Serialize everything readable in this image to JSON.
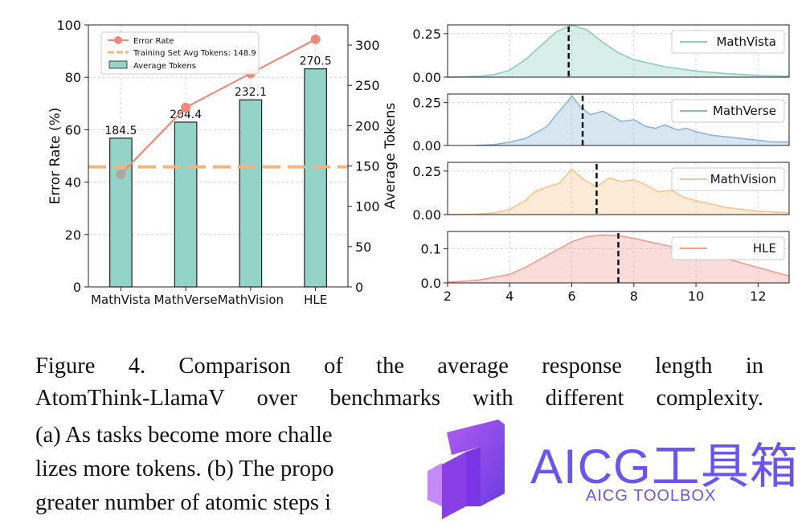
{
  "figure": {
    "caption_lines": [
      "Figure 4.   Comparison of the average response length in",
      "AtomThink-LlamaV over benchmarks with different complexity.",
      "(a) As tasks become more challe",
      "lizes more tokens. (b) The propo",
      "greater number of atomic steps i"
    ]
  },
  "watermark": {
    "main_text": "AICG工具箱",
    "sub_text": "AICG TOOLBOX",
    "color": "#6b55f2"
  },
  "chart_data": [
    {
      "type": "bar",
      "categories": [
        "MathVista",
        "MathVerse",
        "MathVision",
        "HLE"
      ],
      "ylabel": "Error Rate (%)",
      "ylim": [
        0,
        100
      ],
      "yticks": [
        0,
        20,
        40,
        60,
        80,
        100
      ],
      "y2label": "Average Tokens",
      "y2lim": [
        0,
        325
      ],
      "y2ticks": [
        0,
        50,
        100,
        150,
        200,
        250,
        300
      ],
      "grid": true,
      "legend_position": "top-left",
      "series": [
        {
          "name": "Error Rate",
          "kind": "line",
          "axis": "left",
          "values": [
            43,
            68.5,
            81.5,
            94.5
          ],
          "color": "#ef8a78"
        },
        {
          "name": "Training Set Avg Tokens: 148.9",
          "kind": "hline",
          "axis": "right",
          "value": 148.9,
          "color": "#f3b57c"
        },
        {
          "name": "Average Tokens",
          "kind": "bar",
          "axis": "right",
          "values": [
            184.5,
            204.4,
            232.1,
            270.5
          ],
          "labels": [
            "184.5",
            "204.4",
            "232.1",
            "270.5"
          ],
          "color": "#93d3c8"
        }
      ]
    },
    {
      "type": "area",
      "x_range": [
        2,
        13
      ],
      "xticks": [
        2,
        4,
        6,
        8,
        10,
        12
      ],
      "grid": true,
      "legend_position": "top-right",
      "panels": [
        {
          "name": "MathVista",
          "color": "#8fcdbf",
          "ylim": [
            0,
            0.3
          ],
          "yticks": [
            "0.00",
            "0.25"
          ],
          "mean": 5.9,
          "x": [
            2,
            2.5,
            3,
            3.5,
            4,
            4.5,
            5,
            5.5,
            6,
            6.5,
            7,
            7.5,
            8,
            9,
            10,
            11,
            12,
            13
          ],
          "y": [
            0,
            0.002,
            0.005,
            0.015,
            0.04,
            0.1,
            0.18,
            0.26,
            0.3,
            0.27,
            0.2,
            0.14,
            0.1,
            0.06,
            0.035,
            0.02,
            0.01,
            0.005
          ]
        },
        {
          "name": "MathVerse",
          "color": "#8fb6d8",
          "ylim": [
            0,
            0.3
          ],
          "yticks": [
            "0.00",
            "0.25"
          ],
          "mean": 6.35,
          "x": [
            2.9,
            3.5,
            4,
            4.5,
            4.8,
            5.2,
            5.5,
            5.8,
            6,
            6.3,
            6.6,
            7,
            7.3,
            7.6,
            8,
            8.4,
            8.7,
            9,
            9.4,
            9.7,
            10,
            10.5,
            11,
            11.5,
            12,
            12.5,
            13
          ],
          "y": [
            0,
            0.005,
            0.02,
            0.04,
            0.07,
            0.11,
            0.18,
            0.24,
            0.29,
            0.22,
            0.18,
            0.2,
            0.17,
            0.14,
            0.15,
            0.11,
            0.1,
            0.12,
            0.09,
            0.1,
            0.08,
            0.06,
            0.05,
            0.04,
            0.03,
            0.02,
            0.02
          ]
        },
        {
          "name": "MathVision",
          "color": "#f8c58c",
          "ylim": [
            0,
            0.3
          ],
          "yticks": [
            "0.00",
            "0.25"
          ],
          "mean": 6.8,
          "x": [
            2,
            3,
            3.5,
            4,
            4.5,
            4.8,
            5.2,
            5.6,
            6,
            6.4,
            6.8,
            7.2,
            7.6,
            8,
            8.4,
            8.8,
            9.2,
            9.6,
            10,
            10.5,
            11,
            11.5,
            12,
            13
          ],
          "y": [
            0,
            0.003,
            0.01,
            0.03,
            0.08,
            0.13,
            0.16,
            0.18,
            0.26,
            0.2,
            0.16,
            0.21,
            0.19,
            0.2,
            0.17,
            0.13,
            0.14,
            0.1,
            0.08,
            0.06,
            0.04,
            0.03,
            0.02,
            0.01
          ]
        },
        {
          "name": "HLE",
          "color": "#f19c94",
          "ylim": [
            0,
            0.15
          ],
          "yticks": [
            "0.0",
            "0.1"
          ],
          "mean": 7.5,
          "x": [
            2,
            3,
            4,
            4.5,
            5,
            5.5,
            6,
            6.5,
            7,
            7.5,
            8,
            8.5,
            9,
            9.5,
            10,
            10.5,
            11,
            12,
            13
          ],
          "y": [
            0.002,
            0.008,
            0.025,
            0.045,
            0.07,
            0.095,
            0.12,
            0.135,
            0.14,
            0.138,
            0.13,
            0.12,
            0.11,
            0.1,
            0.09,
            0.08,
            0.07,
            0.045,
            0.02
          ]
        }
      ]
    }
  ]
}
